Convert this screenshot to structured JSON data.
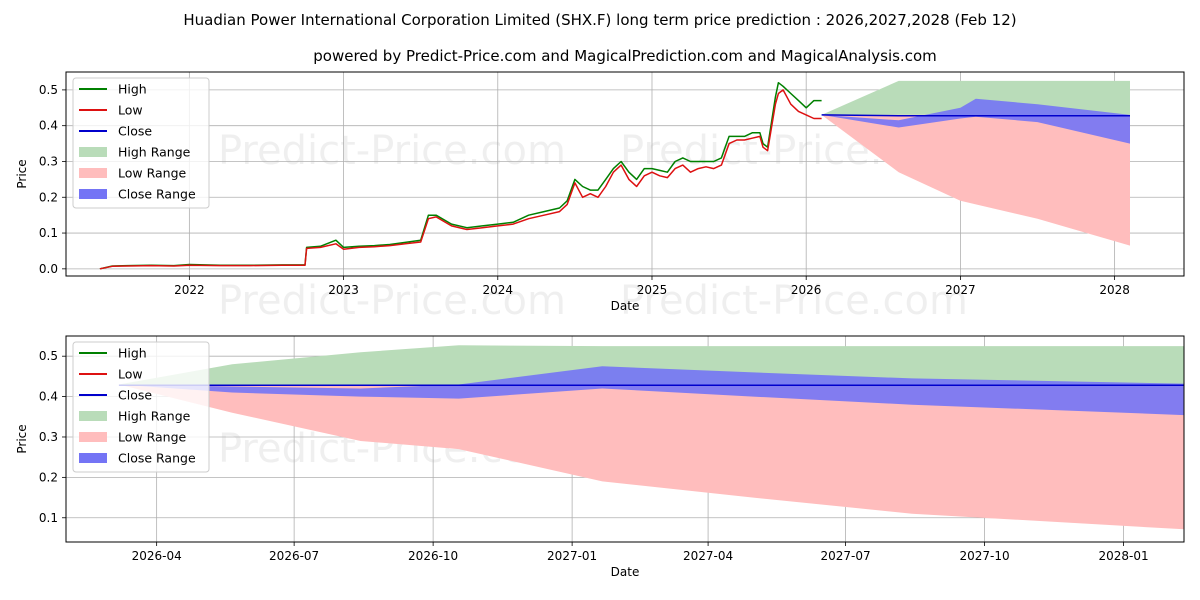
{
  "title": "Huadian Power International Corporation Limited (SHX.F) long term price prediction : 2026,2027,2028 (Feb 12)",
  "subtitle": "powered by Predict-Price.com and MagicalPrediction.com and MagicalAnalysis.com",
  "watermark": "Predict-Price.com",
  "colors": {
    "high": "#008000",
    "low": "#dd1111",
    "close": "#0000cc",
    "high_range": "#b9dcb9",
    "low_range": "#ffbdbd",
    "close_range": "#7474f5",
    "grid": "#b0b0b0"
  },
  "chart_data": [
    {
      "type": "line",
      "xlabel": "Date",
      "ylabel": "Price",
      "xlim": [
        2021.2,
        2028.45
      ],
      "ylim": [
        -0.02,
        0.55
      ],
      "xticks": [
        {
          "v": 2022,
          "label": "2022"
        },
        {
          "v": 2023,
          "label": "2023"
        },
        {
          "v": 2024,
          "label": "2024"
        },
        {
          "v": 2025,
          "label": "2025"
        },
        {
          "v": 2026,
          "label": "2026"
        },
        {
          "v": 2027,
          "label": "2027"
        },
        {
          "v": 2028,
          "label": "2028"
        }
      ],
      "yticks": [
        {
          "v": 0.0,
          "label": "0.0"
        },
        {
          "v": 0.1,
          "label": "0.1"
        },
        {
          "v": 0.2,
          "label": "0.2"
        },
        {
          "v": 0.3,
          "label": "0.3"
        },
        {
          "v": 0.4,
          "label": "0.4"
        },
        {
          "v": 0.5,
          "label": "0.5"
        }
      ],
      "legend": [
        "High",
        "Low",
        "Close",
        "High Range",
        "Low Range",
        "Close Range"
      ],
      "legend_position": "upper-left",
      "history": {
        "x": [
          2021.42,
          2021.5,
          2021.6,
          2021.75,
          2021.9,
          2022.0,
          2022.2,
          2022.4,
          2022.6,
          2022.75,
          2022.76,
          2022.85,
          2022.95,
          2023.0,
          2023.1,
          2023.2,
          2023.3,
          2023.4,
          2023.5,
          2023.55,
          2023.6,
          2023.7,
          2023.8,
          2023.9,
          2024.0,
          2024.1,
          2024.2,
          2024.3,
          2024.4,
          2024.45,
          2024.5,
          2024.55,
          2024.6,
          2024.65,
          2024.7,
          2024.75,
          2024.8,
          2024.85,
          2024.9,
          2024.95,
          2025.0,
          2025.05,
          2025.1,
          2025.15,
          2025.2,
          2025.25,
          2025.3,
          2025.35,
          2025.4,
          2025.45,
          2025.5,
          2025.55,
          2025.6,
          2025.65,
          2025.7,
          2025.72,
          2025.75,
          2025.8,
          2025.82,
          2025.85,
          2025.9,
          2025.95,
          2026.0,
          2026.05,
          2026.1
        ],
        "low": [
          0.0,
          0.007,
          0.008,
          0.009,
          0.008,
          0.01,
          0.009,
          0.009,
          0.01,
          0.01,
          0.057,
          0.06,
          0.07,
          0.055,
          0.06,
          0.062,
          0.065,
          0.07,
          0.075,
          0.14,
          0.145,
          0.12,
          0.11,
          0.115,
          0.12,
          0.125,
          0.14,
          0.15,
          0.16,
          0.18,
          0.24,
          0.2,
          0.21,
          0.2,
          0.23,
          0.27,
          0.29,
          0.25,
          0.23,
          0.26,
          0.27,
          0.26,
          0.255,
          0.28,
          0.29,
          0.27,
          0.28,
          0.285,
          0.28,
          0.29,
          0.35,
          0.36,
          0.36,
          0.365,
          0.37,
          0.34,
          0.33,
          0.46,
          0.49,
          0.5,
          0.46,
          0.44,
          0.43,
          0.42,
          0.42
        ],
        "high": [
          0.0,
          0.008,
          0.009,
          0.01,
          0.009,
          0.012,
          0.01,
          0.01,
          0.011,
          0.011,
          0.06,
          0.063,
          0.08,
          0.06,
          0.063,
          0.065,
          0.068,
          0.074,
          0.08,
          0.15,
          0.15,
          0.125,
          0.115,
          0.12,
          0.125,
          0.13,
          0.15,
          0.16,
          0.17,
          0.19,
          0.25,
          0.23,
          0.22,
          0.22,
          0.25,
          0.28,
          0.3,
          0.27,
          0.25,
          0.28,
          0.28,
          0.275,
          0.27,
          0.3,
          0.31,
          0.3,
          0.3,
          0.3,
          0.3,
          0.31,
          0.37,
          0.37,
          0.37,
          0.38,
          0.38,
          0.35,
          0.34,
          0.48,
          0.52,
          0.51,
          0.49,
          0.47,
          0.45,
          0.47,
          0.47
        ]
      },
      "forecast": {
        "x": [
          2026.1,
          2026.6,
          2027.0,
          2027.1,
          2027.5,
          2028.1
        ],
        "high_upper": [
          0.43,
          0.525,
          0.525,
          0.525,
          0.525,
          0.525
        ],
        "high_lower": [
          0.43,
          0.43,
          0.43,
          0.43,
          0.43,
          0.43
        ],
        "low_upper": [
          0.43,
          0.43,
          0.43,
          0.43,
          0.43,
          0.43
        ],
        "low_lower": [
          0.43,
          0.27,
          0.19,
          0.18,
          0.14,
          0.065
        ],
        "close_upper": [
          0.43,
          0.415,
          0.45,
          0.475,
          0.46,
          0.43
        ],
        "close_lower": [
          0.43,
          0.395,
          0.42,
          0.425,
          0.41,
          0.35
        ],
        "close": [
          0.43,
          0.428,
          0.428,
          0.428,
          0.428,
          0.428
        ]
      }
    },
    {
      "type": "line",
      "xlabel": "Date",
      "ylabel": "Price",
      "xlim": [
        0,
        740
      ],
      "ylim": [
        0.04,
        0.55
      ],
      "xticks": [
        {
          "v": 60,
          "label": "2026-04"
        },
        {
          "v": 151,
          "label": "2026-07"
        },
        {
          "v": 243,
          "label": "2026-10"
        },
        {
          "v": 335,
          "label": "2027-01"
        },
        {
          "v": 425,
          "label": "2027-04"
        },
        {
          "v": 516,
          "label": "2027-07"
        },
        {
          "v": 608,
          "label": "2027-10"
        },
        {
          "v": 700,
          "label": "2028-01"
        }
      ],
      "yticks": [
        {
          "v": 0.1,
          "label": "0.1"
        },
        {
          "v": 0.2,
          "label": "0.2"
        },
        {
          "v": 0.3,
          "label": "0.3"
        },
        {
          "v": 0.4,
          "label": "0.4"
        },
        {
          "v": 0.5,
          "label": "0.5"
        }
      ],
      "legend": [
        "High",
        "Low",
        "Close",
        "High Range",
        "Low Range",
        "Close Range"
      ],
      "legend_position": "upper-left",
      "forecast": {
        "x": [
          35,
          110,
          195,
          260,
          355,
          455,
          560,
          770
        ],
        "high_upper": [
          0.43,
          0.48,
          0.51,
          0.527,
          0.525,
          0.525,
          0.525,
          0.525
        ],
        "high_lower": [
          0.43,
          0.43,
          0.43,
          0.43,
          0.43,
          0.43,
          0.43,
          0.43
        ],
        "low_upper": [
          0.43,
          0.43,
          0.43,
          0.43,
          0.43,
          0.43,
          0.43,
          0.43
        ],
        "low_lower": [
          0.43,
          0.36,
          0.29,
          0.27,
          0.19,
          0.15,
          0.11,
          0.065
        ],
        "close_upper": [
          0.43,
          0.425,
          0.42,
          0.43,
          0.475,
          0.46,
          0.445,
          0.43
        ],
        "close_lower": [
          0.43,
          0.41,
          0.4,
          0.395,
          0.42,
          0.4,
          0.38,
          0.35
        ],
        "close": [
          0.428,
          0.428,
          0.428,
          0.428,
          0.428,
          0.428,
          0.428,
          0.428
        ]
      }
    }
  ]
}
